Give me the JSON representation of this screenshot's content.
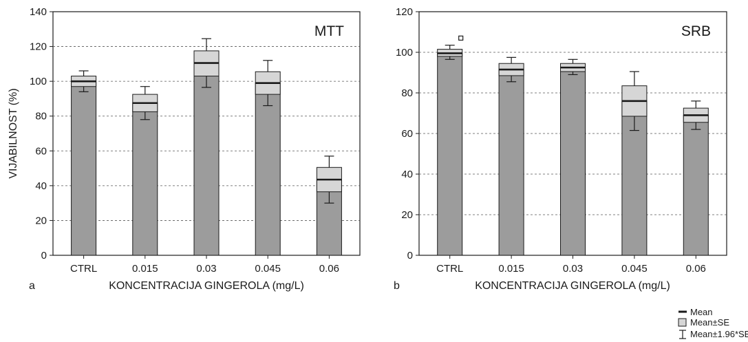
{
  "chart_data": [
    {
      "type": "bar",
      "panel_label": "a",
      "title": "MTT",
      "xlabel": "KONCENTRACIJA GINGEROLA (mg/L)",
      "ylabel": "VIJABILNOST (%)",
      "categories": [
        "CTRL",
        "0.015",
        "0.03",
        "0.045",
        "0.06"
      ],
      "ylim": [
        0,
        140
      ],
      "yticks": [
        0,
        20,
        40,
        60,
        80,
        100,
        120,
        140
      ],
      "grid": "horizontal dashed",
      "series": [
        {
          "name": "Mean",
          "values": [
            100,
            87.5,
            110.5,
            99,
            43.5
          ]
        },
        {
          "name": "Mean±SE",
          "low": [
            97,
            82.5,
            103,
            92.5,
            36.5
          ],
          "high": [
            103,
            92.5,
            117.5,
            105.5,
            50.5
          ]
        },
        {
          "name": "Mean±1.96*SE",
          "low": [
            94,
            78,
            96.5,
            86,
            30
          ],
          "high": [
            106,
            97,
            124.5,
            112,
            57
          ]
        }
      ]
    },
    {
      "type": "bar",
      "panel_label": "b",
      "title": "SRB",
      "xlabel": "KONCENTRACIJA GINGEROLA (mg/L)",
      "ylabel": "",
      "categories": [
        "CTRL",
        "0.015",
        "0.03",
        "0.045",
        "0.06"
      ],
      "ylim": [
        0,
        120
      ],
      "yticks": [
        0,
        20,
        40,
        60,
        80,
        100,
        120
      ],
      "grid": "horizontal dashed",
      "series": [
        {
          "name": "Mean",
          "values": [
            99.5,
            91.5,
            92.5,
            76,
            69
          ]
        },
        {
          "name": "Mean±SE",
          "low": [
            98,
            88.5,
            90.5,
            68.5,
            65.5
          ],
          "high": [
            101.5,
            94.5,
            94.5,
            83.5,
            72.5
          ]
        },
        {
          "name": "Mean±1.96*SE",
          "low": [
            96.5,
            85.5,
            89,
            61.5,
            62
          ],
          "high": [
            103.5,
            97.5,
            96.5,
            90.5,
            76
          ]
        }
      ],
      "outliers": [
        {
          "category": "CTRL",
          "value": 107
        }
      ]
    }
  ],
  "legend": {
    "items": [
      "Mean",
      "Mean±SE",
      "Mean±1.96*SE"
    ],
    "placement": "bottom-right"
  },
  "colors": {
    "bar_fill": "#9c9c9c",
    "se_box_fill": "#d6d6d6",
    "stroke": "#1a1a1a",
    "grid": "#555555"
  }
}
